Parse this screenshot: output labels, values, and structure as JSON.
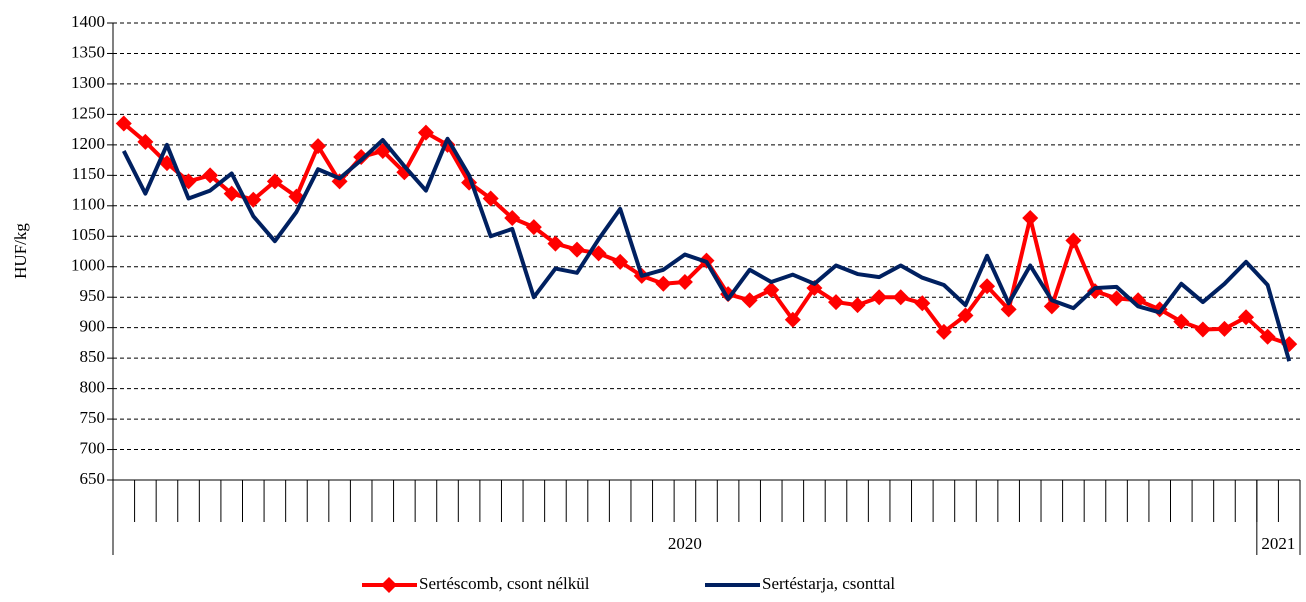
{
  "chart_data": {
    "type": "line",
    "ylabel": "HUF/kg",
    "categories": [
      null,
      null,
      null,
      null,
      null,
      null,
      null,
      null,
      null,
      null,
      null,
      null,
      null,
      null,
      null,
      null,
      null,
      null,
      null,
      null,
      null,
      null,
      null,
      null,
      null,
      null,
      null,
      null,
      null,
      null,
      null,
      null,
      null,
      null,
      null,
      null,
      null,
      null,
      null,
      null,
      null,
      null,
      null,
      null,
      null,
      null,
      null,
      null,
      null,
      null,
      null,
      null,
      null,
      null,
      null
    ],
    "groups": [
      {
        "label": "2020",
        "count": 53
      },
      {
        "label": "2021",
        "count": 2
      }
    ],
    "series": [
      {
        "name": "Sertéscomb, csont nélkül",
        "color": "#ff0000",
        "marker": "diamond",
        "values": [
          1235,
          1205,
          1170,
          1140,
          1150,
          1120,
          1110,
          1140,
          1115,
          1198,
          1140,
          1180,
          1190,
          1155,
          1220,
          1200,
          1138,
          1112,
          1080,
          1065,
          1038,
          1028,
          1022,
          1008,
          985,
          972,
          975,
          1010,
          955,
          945,
          962,
          913,
          965,
          942,
          937,
          950,
          950,
          940,
          893,
          920,
          968,
          930,
          1080,
          935,
          1043,
          960,
          948,
          945,
          930,
          910,
          897,
          898,
          917,
          885,
          873
        ]
      },
      {
        "name": "Sertéstarja, csonttal",
        "color": "#002060",
        "values": [
          1190,
          1120,
          1200,
          1112,
          1125,
          1153,
          1083,
          1042,
          1090,
          1160,
          1145,
          1175,
          1208,
          1165,
          1125,
          1210,
          1150,
          1050,
          1062,
          950,
          997,
          990,
          1045,
          1095,
          985,
          995,
          1020,
          1008,
          947,
          995,
          975,
          987,
          972,
          1002,
          988,
          983,
          1002,
          982,
          970,
          937,
          1018,
          940,
          1002,
          945,
          932,
          965,
          967,
          935,
          925,
          972,
          942,
          972,
          1008,
          970,
          845
        ]
      }
    ],
    "ylim": [
      650,
      1400
    ],
    "yticks": [
      650,
      700,
      750,
      800,
      850,
      900,
      950,
      1000,
      1050,
      1100,
      1150,
      1200,
      1250,
      1300,
      1350,
      1400
    ],
    "grid": true,
    "legend": "bottom"
  }
}
